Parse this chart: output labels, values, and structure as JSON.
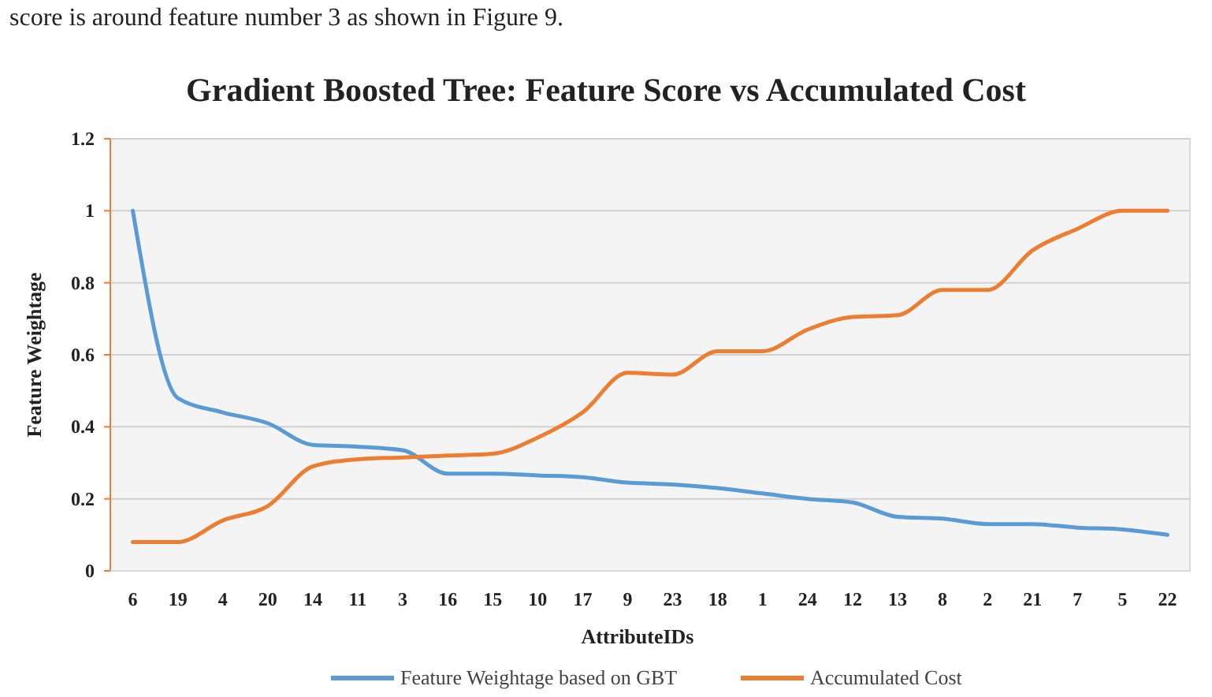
{
  "chart_data": {
    "type": "line",
    "title": "Gradient Boosted Tree: Feature Score vs Accumulated Cost",
    "annotations": [
      "score is around feature number 3 as shown in Figure 9."
    ],
    "xlabel": "AttributeIDs",
    "ylabel": "Feature Weightage",
    "categories": [
      "6",
      "19",
      "4",
      "20",
      "14",
      "11",
      "3",
      "16",
      "15",
      "10",
      "17",
      "9",
      "23",
      "18",
      "1",
      "24",
      "12",
      "13",
      "8",
      "2",
      "21",
      "7",
      "5",
      "22"
    ],
    "series": [
      {
        "name": "Feature Weightage based on GBT",
        "color": "#5b9bd5",
        "values": [
          1.0,
          0.48,
          0.44,
          0.41,
          0.35,
          0.345,
          0.335,
          0.27,
          0.27,
          0.265,
          0.26,
          0.245,
          0.24,
          0.23,
          0.215,
          0.2,
          0.19,
          0.15,
          0.145,
          0.13,
          0.13,
          0.12,
          0.115,
          0.1
        ]
      },
      {
        "name": "Accumulated Cost",
        "color": "#ed7d31",
        "values": [
          0.08,
          0.08,
          0.14,
          0.18,
          0.29,
          0.31,
          0.315,
          0.32,
          0.325,
          0.37,
          0.44,
          0.55,
          0.545,
          0.61,
          0.61,
          0.67,
          0.705,
          0.71,
          0.78,
          0.78,
          0.89,
          0.95,
          1.0,
          1.0
        ]
      }
    ],
    "ylim": [
      0,
      1.2
    ],
    "yticks": [
      0,
      0.2,
      0.4,
      0.6,
      0.8,
      1,
      1.2
    ],
    "grid": "y",
    "legend": "bottom",
    "marker": "none",
    "line_style": "solid"
  }
}
